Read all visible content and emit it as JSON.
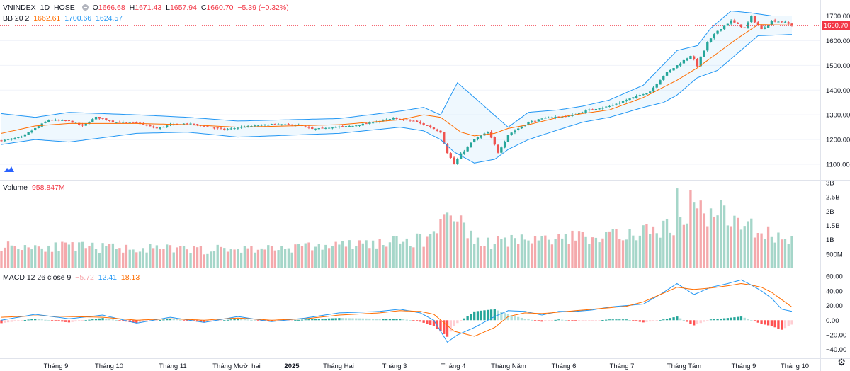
{
  "main_legend": {
    "symbol": "VNINDEX",
    "interval": "1D",
    "exchange": "HOSE",
    "o_label": "O",
    "o": "1666.68",
    "h_label": "H",
    "h": "1671.43",
    "l_label": "L",
    "l": "1657.94",
    "c_label": "C",
    "c": "1660.70",
    "change": "−5.39 (−0.32%)"
  },
  "bb_legend": {
    "name": "BB 20 2",
    "basis": "1662.61",
    "upper": "1700.66",
    "lower": "1624.57"
  },
  "volume_legend": {
    "name": "Volume",
    "value": "958.847M"
  },
  "macd_legend": {
    "name": "MACD 12 26 close 9",
    "hist": "−5.72",
    "macd": "12.41",
    "signal": "18.13"
  },
  "last_price_tag": "1660.70",
  "colors": {
    "up": "#26a69a",
    "down": "#ef5350",
    "vol_up": "#a5d6c9",
    "vol_down": "#f4a9ac",
    "bb_band": "#2196f3",
    "bb_basis": "#ff6d00",
    "macd": "#2196f3",
    "signal": "#ff6d00"
  },
  "chart_data": [
    {
      "type": "candlestick",
      "title": "VNINDEX 1D HOSE",
      "indicator": "BB 20 2",
      "y_ticks": [
        "1700.00",
        "1600.00",
        "1500.00",
        "1400.00",
        "1300.00",
        "1200.00",
        "1100.00"
      ],
      "ylim": [
        1060,
        1730
      ],
      "x_labels": [
        "Tháng 9",
        "Tháng 10",
        "Tháng 11",
        "Tháng Mười hai",
        "2025",
        "Tháng Hai",
        "Tháng 3",
        "Tháng 4",
        "Tháng Năm",
        "Tháng 6",
        "Tháng 7",
        "Tháng Tám",
        "Tháng 9",
        "Tháng 10"
      ],
      "close_path": [
        [
          0,
          1195
        ],
        [
          6,
          1210
        ],
        [
          14,
          1280
        ],
        [
          20,
          1275
        ],
        [
          24,
          1255
        ],
        [
          28,
          1290
        ],
        [
          34,
          1270
        ],
        [
          40,
          1268
        ],
        [
          46,
          1245
        ],
        [
          50,
          1260
        ],
        [
          55,
          1265
        ],
        [
          60,
          1255
        ],
        [
          66,
          1240
        ],
        [
          72,
          1252
        ],
        [
          80,
          1262
        ],
        [
          88,
          1258
        ],
        [
          92,
          1242
        ],
        [
          98,
          1250
        ],
        [
          104,
          1255
        ],
        [
          110,
          1270
        ],
        [
          116,
          1285
        ],
        [
          122,
          1275
        ],
        [
          127,
          1250
        ],
        [
          130,
          1230
        ],
        [
          132,
          1150
        ],
        [
          134,
          1100
        ],
        [
          136,
          1140
        ],
        [
          140,
          1200
        ],
        [
          144,
          1230
        ],
        [
          147,
          1150
        ],
        [
          150,
          1220
        ],
        [
          156,
          1270
        ],
        [
          162,
          1290
        ],
        [
          168,
          1295
        ],
        [
          174,
          1320
        ],
        [
          180,
          1335
        ],
        [
          186,
          1365
        ],
        [
          192,
          1395
        ],
        [
          196,
          1460
        ],
        [
          200,
          1500
        ],
        [
          204,
          1540
        ],
        [
          206,
          1500
        ],
        [
          209,
          1590
        ],
        [
          212,
          1640
        ],
        [
          216,
          1680
        ],
        [
          220,
          1650
        ],
        [
          222,
          1695
        ],
        [
          225,
          1645
        ],
        [
          228,
          1680
        ],
        [
          232,
          1675
        ],
        [
          234,
          1661
        ]
      ],
      "bb_upper_path": [
        [
          0,
          1305
        ],
        [
          10,
          1290
        ],
        [
          20,
          1310
        ],
        [
          40,
          1300
        ],
        [
          55,
          1290
        ],
        [
          70,
          1275
        ],
        [
          100,
          1285
        ],
        [
          118,
          1315
        ],
        [
          125,
          1330
        ],
        [
          130,
          1300
        ],
        [
          135,
          1430
        ],
        [
          140,
          1370
        ],
        [
          145,
          1310
        ],
        [
          150,
          1250
        ],
        [
          156,
          1310
        ],
        [
          165,
          1320
        ],
        [
          172,
          1335
        ],
        [
          180,
          1360
        ],
        [
          190,
          1420
        ],
        [
          200,
          1560
        ],
        [
          206,
          1580
        ],
        [
          210,
          1650
        ],
        [
          216,
          1720
        ],
        [
          222,
          1712
        ],
        [
          228,
          1700
        ],
        [
          234,
          1700
        ]
      ],
      "bb_lower_path": [
        [
          0,
          1180
        ],
        [
          10,
          1200
        ],
        [
          20,
          1190
        ],
        [
          40,
          1225
        ],
        [
          55,
          1230
        ],
        [
          70,
          1210
        ],
        [
          100,
          1225
        ],
        [
          118,
          1250
        ],
        [
          125,
          1235
        ],
        [
          130,
          1200
        ],
        [
          134,
          1150
        ],
        [
          140,
          1105
        ],
        [
          146,
          1120
        ],
        [
          150,
          1160
        ],
        [
          156,
          1200
        ],
        [
          165,
          1240
        ],
        [
          172,
          1270
        ],
        [
          180,
          1290
        ],
        [
          190,
          1330
        ],
        [
          196,
          1350
        ],
        [
          200,
          1380
        ],
        [
          206,
          1450
        ],
        [
          212,
          1480
        ],
        [
          218,
          1550
        ],
        [
          224,
          1620
        ],
        [
          234,
          1625
        ]
      ],
      "bb_basis_path": [
        [
          0,
          1225
        ],
        [
          10,
          1255
        ],
        [
          20,
          1265
        ],
        [
          40,
          1265
        ],
        [
          55,
          1260
        ],
        [
          70,
          1250
        ],
        [
          100,
          1260
        ],
        [
          118,
          1280
        ],
        [
          125,
          1300
        ],
        [
          130,
          1290
        ],
        [
          136,
          1230
        ],
        [
          140,
          1215
        ],
        [
          146,
          1225
        ],
        [
          150,
          1245
        ],
        [
          156,
          1260
        ],
        [
          165,
          1290
        ],
        [
          172,
          1305
        ],
        [
          180,
          1320
        ],
        [
          190,
          1370
        ],
        [
          200,
          1440
        ],
        [
          206,
          1490
        ],
        [
          212,
          1550
        ],
        [
          218,
          1610
        ],
        [
          224,
          1665
        ],
        [
          234,
          1663
        ]
      ]
    },
    {
      "type": "bar",
      "title": "Volume",
      "y_ticks": [
        "3B",
        "2.5B",
        "2B",
        "1.5B",
        "1B",
        "500M"
      ],
      "ylim": [
        0,
        3000000000
      ],
      "level_path": [
        [
          0,
          800
        ],
        [
          20,
          750
        ],
        [
          40,
          700
        ],
        [
          60,
          650
        ],
        [
          80,
          700
        ],
        [
          100,
          800
        ],
        [
          115,
          900
        ],
        [
          125,
          1000
        ],
        [
          130,
          1500
        ],
        [
          134,
          2000
        ],
        [
          138,
          1100
        ],
        [
          145,
          900
        ],
        [
          160,
          1000
        ],
        [
          180,
          1200
        ],
        [
          196,
          1400
        ],
        [
          200,
          1500
        ],
        [
          205,
          2000
        ],
        [
          210,
          1800
        ],
        [
          215,
          1700
        ],
        [
          220,
          1600
        ],
        [
          225,
          1300
        ],
        [
          234,
          959
        ]
      ],
      "spikes": [
        [
          131,
          1900
        ],
        [
          132,
          1950
        ],
        [
          133,
          1850
        ],
        [
          134,
          1650
        ],
        [
          137,
          1600
        ],
        [
          200,
          2800
        ],
        [
          204,
          2750
        ],
        [
          206,
          2100
        ],
        [
          210,
          2100
        ],
        [
          213,
          2400
        ],
        [
          214,
          2200
        ]
      ]
    },
    {
      "type": "line",
      "title": "MACD 12 26 close 9",
      "y_ticks": [
        "60.00",
        "40.00",
        "20.00",
        "0.00",
        "−20.00",
        "−40.00"
      ],
      "ylim": [
        -50,
        65
      ],
      "macd_path": [
        [
          0,
          0
        ],
        [
          10,
          8
        ],
        [
          20,
          2
        ],
        [
          30,
          7
        ],
        [
          40,
          -4
        ],
        [
          50,
          4
        ],
        [
          60,
          -3
        ],
        [
          70,
          5
        ],
        [
          80,
          -2
        ],
        [
          90,
          3
        ],
        [
          100,
          10
        ],
        [
          112,
          12
        ],
        [
          118,
          15
        ],
        [
          124,
          10
        ],
        [
          128,
          0
        ],
        [
          132,
          -30
        ],
        [
          135,
          -20
        ],
        [
          140,
          -10
        ],
        [
          146,
          5
        ],
        [
          150,
          13
        ],
        [
          155,
          12
        ],
        [
          160,
          7
        ],
        [
          165,
          12
        ],
        [
          170,
          12
        ],
        [
          175,
          14
        ],
        [
          180,
          18
        ],
        [
          185,
          20
        ],
        [
          190,
          22
        ],
        [
          195,
          35
        ],
        [
          200,
          50
        ],
        [
          205,
          35
        ],
        [
          210,
          45
        ],
        [
          215,
          50
        ],
        [
          219,
          55
        ],
        [
          222,
          48
        ],
        [
          225,
          40
        ],
        [
          228,
          30
        ],
        [
          231,
          15
        ],
        [
          234,
          12
        ]
      ],
      "signal_path": [
        [
          0,
          4
        ],
        [
          10,
          6
        ],
        [
          20,
          5
        ],
        [
          30,
          4
        ],
        [
          40,
          0
        ],
        [
          50,
          2
        ],
        [
          60,
          0
        ],
        [
          70,
          3
        ],
        [
          80,
          0
        ],
        [
          90,
          2
        ],
        [
          100,
          7
        ],
        [
          112,
          10
        ],
        [
          118,
          13
        ],
        [
          124,
          12
        ],
        [
          128,
          8
        ],
        [
          134,
          -15
        ],
        [
          140,
          -22
        ],
        [
          146,
          -10
        ],
        [
          150,
          5
        ],
        [
          155,
          10
        ],
        [
          160,
          9
        ],
        [
          165,
          11
        ],
        [
          170,
          13
        ],
        [
          175,
          15
        ],
        [
          180,
          17
        ],
        [
          185,
          19
        ],
        [
          190,
          25
        ],
        [
          195,
          35
        ],
        [
          200,
          45
        ],
        [
          205,
          42
        ],
        [
          210,
          44
        ],
        [
          215,
          47
        ],
        [
          219,
          50
        ],
        [
          222,
          48
        ],
        [
          225,
          45
        ],
        [
          228,
          38
        ],
        [
          231,
          28
        ],
        [
          234,
          18
        ]
      ]
    }
  ]
}
